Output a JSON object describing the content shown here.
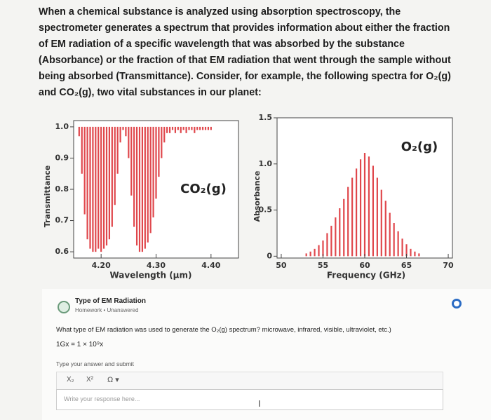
{
  "intro": "When a chemical substance is analyzed using absorption spectroscopy, the spectrometer generates a spectrum that provides information about either the fraction of EM radiation of a specific wavelength that was absorbed by the substance (Absorbance) or the fraction of that EM radiation that went through the sample without being absorbed (Transmittance). Consider, for example, the following spectra for O₂(g) and CO₂(g), two vital substances in our planet:",
  "chart_data": [
    {
      "type": "stem",
      "annotation": "CO₂(g)",
      "x_label": "Wavelength (µm)",
      "y_label": "Transmittance",
      "color": "#e0474c",
      "baseline": 1.0,
      "x": [
        4.16,
        4.165,
        4.17,
        4.175,
        4.18,
        4.185,
        4.19,
        4.195,
        4.2,
        4.205,
        4.21,
        4.215,
        4.22,
        4.225,
        4.23,
        4.235,
        4.24,
        4.245,
        4.25,
        4.255,
        4.26,
        4.265,
        4.27,
        4.275,
        4.28,
        4.285,
        4.29,
        4.295,
        4.3,
        4.305,
        4.31,
        4.315,
        4.32,
        4.325,
        4.33,
        4.335,
        4.34,
        4.345,
        4.35,
        4.355,
        4.36,
        4.365,
        4.37,
        4.375,
        4.38,
        4.385,
        4.39,
        4.395,
        4.4
      ],
      "values": [
        0.97,
        0.85,
        0.72,
        0.64,
        0.61,
        0.6,
        0.6,
        0.61,
        0.6,
        0.61,
        0.62,
        0.64,
        0.68,
        0.75,
        0.85,
        0.95,
        0.99,
        0.97,
        0.9,
        0.78,
        0.68,
        0.62,
        0.6,
        0.6,
        0.61,
        0.63,
        0.66,
        0.71,
        0.77,
        0.84,
        0.9,
        0.95,
        0.98,
        0.98,
        0.99,
        0.98,
        0.99,
        0.98,
        0.99,
        0.98,
        0.99,
        0.99,
        0.98,
        0.99,
        0.99,
        0.99,
        0.99,
        0.99,
        0.99
      ],
      "xlim": [
        4.15,
        4.45
      ],
      "ylim": [
        0.58,
        1.02
      ],
      "xticks": [
        {
          "value": 4.2,
          "label": "4.20"
        },
        {
          "value": 4.3,
          "label": "4.30"
        },
        {
          "value": 4.4,
          "label": "4.40"
        }
      ],
      "yticks": [
        {
          "value": 1.0,
          "label": "1.0"
        },
        0.9,
        0.8,
        0.7,
        0.6
      ]
    },
    {
      "type": "stem",
      "annotation": "O₂(g)",
      "x_label": "Frequency (GHz)",
      "y_label": "Absorbance",
      "color": "#e0474c",
      "baseline": 0,
      "x": [
        53.0,
        53.5,
        54.0,
        54.5,
        55.0,
        55.5,
        56.0,
        56.5,
        57.0,
        57.5,
        58.0,
        58.5,
        59.0,
        59.5,
        60.0,
        60.5,
        61.0,
        61.5,
        62.0,
        62.5,
        63.0,
        63.5,
        64.0,
        64.5,
        65.0,
        65.5,
        66.0,
        66.5
      ],
      "values": [
        0.03,
        0.05,
        0.08,
        0.12,
        0.17,
        0.25,
        0.33,
        0.42,
        0.52,
        0.62,
        0.75,
        0.85,
        0.95,
        1.05,
        1.12,
        1.08,
        0.98,
        0.85,
        0.72,
        0.6,
        0.47,
        0.36,
        0.27,
        0.19,
        0.13,
        0.08,
        0.05,
        0.03
      ],
      "xlim": [
        49.5,
        70.5
      ],
      "ylim": [
        -0.02,
        1.5
      ],
      "xticks": [
        50,
        55,
        60,
        65,
        70
      ],
      "yticks": [
        0,
        0.5,
        {
          "value": 1.0,
          "label": "1.0"
        },
        1.5
      ]
    }
  ],
  "assignment": {
    "title": "Type of EM Radiation",
    "category": "Homework",
    "status": "Unanswered"
  },
  "question": {
    "text": "What type of EM radiation was used to generate the O₂(g) spectrum? microwave, infrared, visible, ultraviolet, etc.)",
    "hint": "1Gx = 1 × 10⁹x",
    "instruction": "Type your answer and submit"
  },
  "editor": {
    "toolbar": [
      "X₂",
      "X²",
      "Ω ▾"
    ],
    "placeholder": "Write your response here..."
  }
}
